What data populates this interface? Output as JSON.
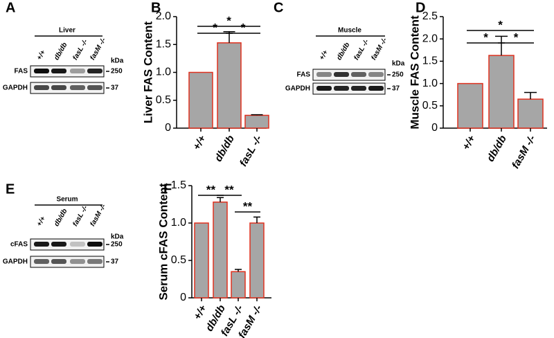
{
  "chart_data": [
    {
      "type": "bar",
      "panel": "B",
      "y_label": "Liver FAS Content",
      "categories": [
        "+/+",
        "db/db",
        "fasL -/-"
      ],
      "values": [
        1.0,
        1.53,
        0.23
      ],
      "errors": [
        null,
        0.2,
        0.01
      ],
      "color": "#a6a6a6",
      "edge_color": "#e0301e",
      "ylim": [
        0,
        2.0
      ],
      "yticks": [
        0,
        0.5,
        {
          "value": 1,
          "label": "1.0"
        },
        1.5,
        {
          "value": 2,
          "label": "2.0"
        }
      ],
      "annotations": [
        "*",
        "*",
        "*"
      ]
    },
    {
      "type": "bar",
      "panel": "D",
      "y_label": "Muscle FAS Content",
      "categories": [
        "+/+",
        "db/db",
        "fasM -/-"
      ],
      "values": [
        1.0,
        1.63,
        0.65
      ],
      "errors": [
        null,
        0.43,
        0.15
      ],
      "color": "#a6a6a6",
      "edge_color": "#e0301e",
      "ylim": [
        0,
        2.5
      ],
      "yticks": [
        0,
        0.5,
        {
          "value": 1,
          "label": "1.0"
        },
        1.5,
        {
          "value": 2,
          "label": "2.0"
        },
        2.5
      ],
      "annotations": [
        "*",
        "*",
        "*"
      ]
    },
    {
      "type": "bar",
      "panel": "F",
      "y_label": "Serum cFAS Content",
      "categories": [
        "+/+",
        "db/db",
        "fasL -/-",
        "fasM -/-"
      ],
      "values": [
        1.0,
        1.28,
        0.35,
        1.0
      ],
      "errors": [
        null,
        0.06,
        0.03,
        0.08
      ],
      "color": "#a6a6a6",
      "edge_color": "#e0301e",
      "ylim": [
        0,
        1.5
      ],
      "yticks": [
        0,
        0.5,
        {
          "value": 1,
          "label": "1.0"
        },
        1.5
      ],
      "annotations": [
        "**",
        "**",
        "**"
      ]
    }
  ],
  "blots": [
    {
      "panel": "A",
      "title": "Liver",
      "lanes": [
        "+/+",
        "db/db",
        "fasL -/-",
        "fasM -/-"
      ],
      "unit": "kDa",
      "rows": [
        {
          "name": "FAS",
          "marker": "250"
        },
        {
          "name": "GAPDH",
          "marker": "37"
        }
      ]
    },
    {
      "panel": "C",
      "title": "Muscle",
      "lanes": [
        "+/+",
        "db/db",
        "fasL -/-",
        "fasM -/-"
      ],
      "unit": "kDa",
      "rows": [
        {
          "name": "FAS",
          "marker": "250"
        },
        {
          "name": "GAPDH",
          "marker": "37"
        }
      ]
    },
    {
      "panel": "E",
      "title": "Serum",
      "lanes": [
        "+/+",
        "db/db",
        "fasL -/-",
        "fasM -/-"
      ],
      "unit": "kDa",
      "rows": [
        {
          "name": "cFAS",
          "marker": "250"
        },
        {
          "name": "GAPDH",
          "marker": "37"
        }
      ]
    }
  ]
}
